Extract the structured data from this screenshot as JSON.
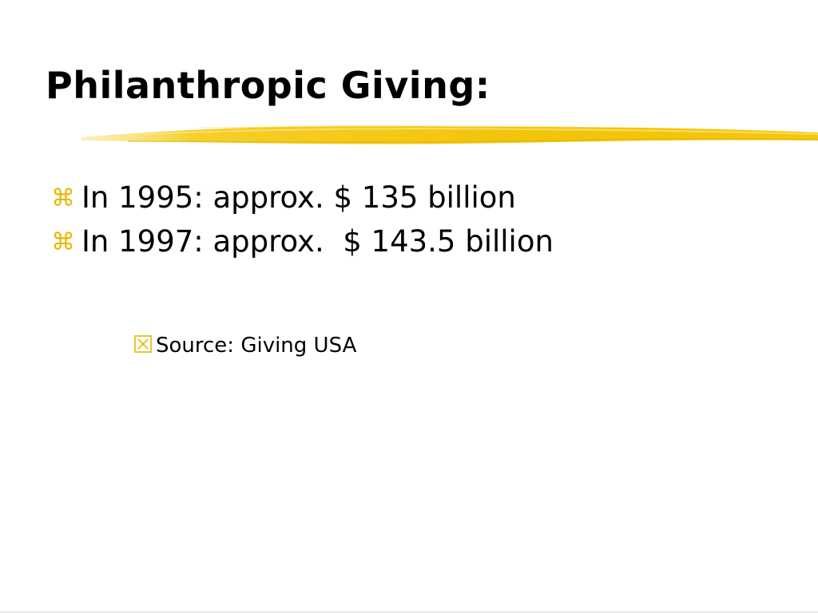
{
  "slide": {
    "title": "Philanthropic Giving:",
    "bullets": [
      {
        "icon": "command-key-icon",
        "text": "In 1995: approx. $ 135 billion"
      },
      {
        "icon": "command-key-icon",
        "text": "In 1997: approx.  $ 143.5 billion"
      }
    ],
    "sub_bullets": [
      {
        "icon": "x-box-icon",
        "text": "Source: Giving USA"
      }
    ]
  },
  "colors": {
    "accent": "#f2c40a",
    "accent_light": "#f9df5c",
    "text": "#000000",
    "background": "#ffffff"
  }
}
